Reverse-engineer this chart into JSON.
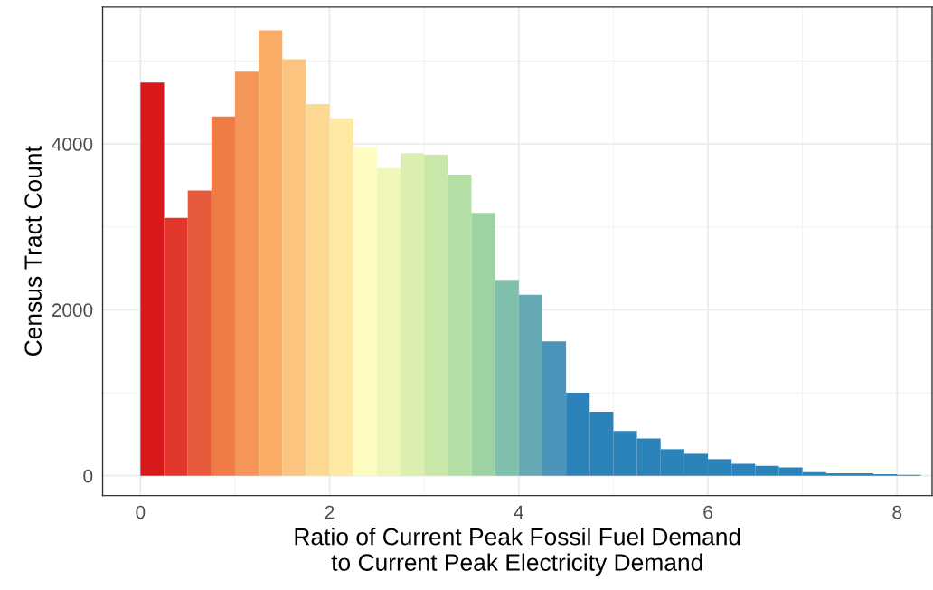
{
  "chart_data": {
    "type": "histogram",
    "xlabel": "Ratio of Current Peak Fossil Fuel Demand\nto Current Peak Electricity Demand",
    "ylabel": "Census Tract Count",
    "bins": [
      0,
      0.25,
      0.5,
      0.75,
      1,
      1.25,
      1.5,
      1.75,
      2,
      2.25,
      2.5,
      2.75,
      3,
      3.25,
      3.5,
      3.75,
      4,
      4.25,
      4.5,
      4.75,
      5,
      5.25,
      5.5,
      5.75,
      6,
      6.25,
      6.5,
      6.75,
      7,
      7.25,
      7.5,
      7.75,
      8,
      8.25
    ],
    "values": [
      4740,
      3110,
      3440,
      4330,
      4870,
      5370,
      5020,
      4480,
      4310,
      3960,
      3710,
      3890,
      3870,
      3630,
      3170,
      2360,
      2180,
      1620,
      1000,
      770,
      540,
      450,
      320,
      265,
      200,
      145,
      120,
      100,
      44,
      29,
      29,
      18,
      11
    ],
    "colors": [
      "#d7191c",
      "#e0362b",
      "#e65a3c",
      "#ef7c47",
      "#f4955a",
      "#fbad65",
      "#fbc57f",
      "#fdd891",
      "#fee9a2",
      "#fefcc0",
      "#eef6b9",
      "#dceeb0",
      "#c8e7a8",
      "#b3dea4",
      "#9dd3a3",
      "#80bfab",
      "#64a9b3",
      "#4a94b9",
      "#2b83ba",
      "#2b83ba",
      "#2b83ba",
      "#2b83ba",
      "#2b83ba",
      "#2b83ba",
      "#2b83ba",
      "#2b83ba",
      "#2b83ba",
      "#2b83ba",
      "#2b83ba",
      "#2b83ba",
      "#2b83ba",
      "#2b83ba",
      "#2b83ba"
    ],
    "xlim": [
      -0.4,
      8.37
    ],
    "xticks": [
      0,
      2,
      4,
      6,
      8
    ],
    "ylim": [
      -240,
      5650
    ],
    "yticks": [
      0,
      2000,
      4000
    ],
    "grid": true
  }
}
